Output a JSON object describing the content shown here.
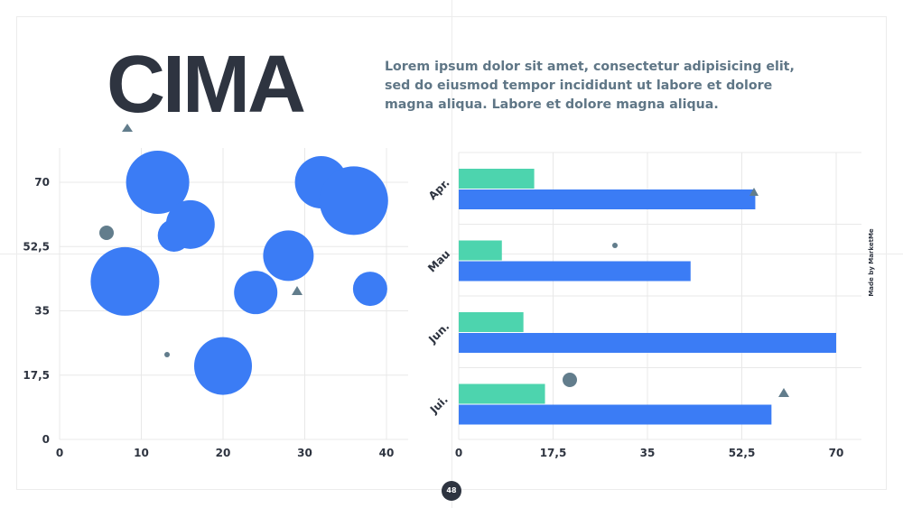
{
  "title": "CIMA",
  "description": "Lorem ipsum dolor sit amet, consectetur adipisicing elit, sed do eiusmod tempor incididunt ut labore et dolore magna aliqua. Labore et dolore magna aliqua.",
  "credit": "Made by MarketMe",
  "page_number": "48",
  "colors": {
    "primary": "#3b7cf5",
    "secondary": "#4dd4ae",
    "accent": "#627d8c",
    "text": "#2e3440",
    "grid": "#e8e8e8"
  },
  "chart_data": [
    {
      "type": "scatter",
      "style": "bubble",
      "xlim": [
        0,
        40
      ],
      "ylim": [
        0,
        70
      ],
      "x_ticks": [
        "0",
        "10",
        "20",
        "30",
        "40"
      ],
      "y_ticks": [
        "0",
        "17,5",
        "35",
        "52,5",
        "70"
      ],
      "grid": true,
      "series": [
        {
          "points": [
            {
              "x": 8,
              "y": 43,
              "size": 38
            },
            {
              "x": 12,
              "y": 70,
              "size": 35
            },
            {
              "x": 14,
              "y": 55.5,
              "size": 18
            },
            {
              "x": 16,
              "y": 58.5,
              "size": 27
            },
            {
              "x": 20,
              "y": 20,
              "size": 32
            },
            {
              "x": 24,
              "y": 40,
              "size": 24
            },
            {
              "x": 28,
              "y": 50,
              "size": 28
            },
            {
              "x": 32,
              "y": 70,
              "size": 29
            },
            {
              "x": 36,
              "y": 65,
              "size": 38
            },
            {
              "x": 38,
              "y": 41,
              "size": 19
            }
          ]
        }
      ]
    },
    {
      "type": "bar",
      "orientation": "horizontal",
      "categories": [
        "Apr.",
        "Mau",
        "Jun.",
        "Jui."
      ],
      "xlim": [
        0,
        70
      ],
      "x_ticks": [
        "0",
        "17,5",
        "35",
        "52,5",
        "70"
      ],
      "grid": true,
      "series": [
        {
          "values": [
            14,
            8,
            12,
            16
          ]
        },
        {
          "values": [
            55,
            43,
            70,
            58
          ]
        }
      ]
    }
  ]
}
